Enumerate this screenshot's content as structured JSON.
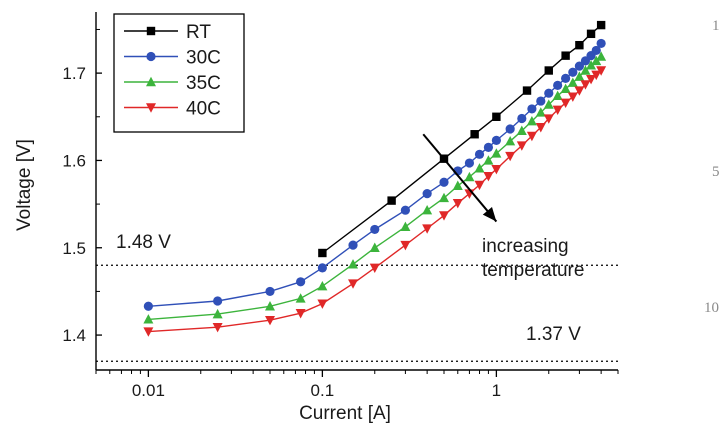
{
  "chart_data": {
    "type": "line",
    "xlabel": "Current [A]",
    "ylabel": "Voltage [V]",
    "x_scale": "log",
    "xlim": [
      0.005,
      5
    ],
    "ylim": [
      1.36,
      1.77
    ],
    "x_ticks": [
      {
        "value": 0.01,
        "label": "0.01"
      },
      {
        "value": 0.1,
        "label": "0.1"
      },
      {
        "value": 1,
        "label": "1"
      }
    ],
    "y_ticks": [
      {
        "value": 1.4,
        "label": "1.4"
      },
      {
        "value": 1.5,
        "label": "1.5"
      },
      {
        "value": 1.6,
        "label": "1.6"
      },
      {
        "value": 1.7,
        "label": "1.7"
      }
    ],
    "grid": false,
    "legend_position": "top-left",
    "series": [
      {
        "name": "RT",
        "color": "#000000",
        "marker": "square",
        "x": [
          0.1,
          0.25,
          0.5,
          0.75,
          1.0,
          1.5,
          2.0,
          2.5,
          3.0,
          3.5,
          4.0
        ],
        "y": [
          1.494,
          1.554,
          1.602,
          1.63,
          1.65,
          1.68,
          1.703,
          1.72,
          1.732,
          1.745,
          1.755
        ]
      },
      {
        "name": "30C",
        "color": "#3050b8",
        "marker": "circle",
        "x": [
          0.01,
          0.025,
          0.05,
          0.075,
          0.1,
          0.15,
          0.2,
          0.3,
          0.4,
          0.5,
          0.6,
          0.7,
          0.8,
          0.9,
          1.0,
          1.2,
          1.4,
          1.6,
          1.8,
          2.0,
          2.25,
          2.5,
          2.75,
          3.0,
          3.25,
          3.5,
          3.75,
          4.0
        ],
        "y": [
          1.433,
          1.439,
          1.45,
          1.461,
          1.477,
          1.503,
          1.521,
          1.543,
          1.562,
          1.575,
          1.588,
          1.597,
          1.607,
          1.615,
          1.623,
          1.636,
          1.648,
          1.659,
          1.668,
          1.677,
          1.686,
          1.694,
          1.701,
          1.708,
          1.714,
          1.72,
          1.726,
          1.734
        ]
      },
      {
        "name": "35C",
        "color": "#3cb43c",
        "marker": "triangle-up",
        "x": [
          0.01,
          0.025,
          0.05,
          0.075,
          0.1,
          0.15,
          0.2,
          0.3,
          0.4,
          0.5,
          0.6,
          0.7,
          0.8,
          0.9,
          1.0,
          1.2,
          1.4,
          1.6,
          1.8,
          2.0,
          2.25,
          2.5,
          2.75,
          3.0,
          3.25,
          3.5,
          3.75,
          4.0
        ],
        "y": [
          1.418,
          1.424,
          1.433,
          1.442,
          1.456,
          1.481,
          1.5,
          1.524,
          1.543,
          1.557,
          1.571,
          1.581,
          1.591,
          1.6,
          1.608,
          1.622,
          1.634,
          1.645,
          1.655,
          1.664,
          1.674,
          1.682,
          1.689,
          1.696,
          1.703,
          1.709,
          1.714,
          1.719
        ]
      },
      {
        "name": "40C",
        "color": "#e02828",
        "marker": "triangle-down",
        "x": [
          0.01,
          0.025,
          0.05,
          0.075,
          0.1,
          0.15,
          0.2,
          0.3,
          0.4,
          0.5,
          0.6,
          0.7,
          0.8,
          0.9,
          1.0,
          1.2,
          1.4,
          1.6,
          1.8,
          2.0,
          2.25,
          2.5,
          2.75,
          3.0,
          3.25,
          3.5,
          3.75,
          4.0
        ],
        "y": [
          1.404,
          1.409,
          1.417,
          1.425,
          1.436,
          1.459,
          1.477,
          1.503,
          1.522,
          1.537,
          1.551,
          1.562,
          1.572,
          1.582,
          1.59,
          1.605,
          1.617,
          1.628,
          1.638,
          1.648,
          1.658,
          1.666,
          1.673,
          1.68,
          1.687,
          1.693,
          1.698,
          1.703
        ]
      }
    ],
    "reference_lines": [
      {
        "y": 1.48,
        "label": "1.48 V",
        "style": "dotted"
      },
      {
        "y": 1.37,
        "label": "1.37 V",
        "style": "dotted"
      }
    ],
    "annotation": {
      "lines": [
        "increasing",
        "temperature"
      ],
      "arrow": {
        "from": [
          0.38,
          1.63
        ],
        "to": [
          1.0,
          1.53
        ]
      }
    }
  },
  "margin_line_numbers": [
    "1",
    "5",
    "10"
  ]
}
